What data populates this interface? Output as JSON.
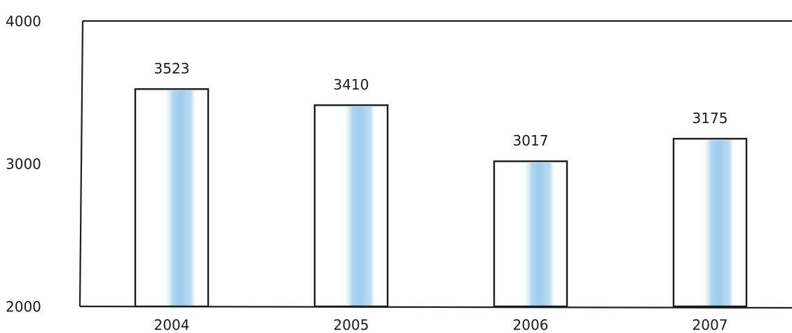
{
  "chart_data": {
    "type": "bar",
    "categories": [
      "2004",
      "2005",
      "2006",
      "2007"
    ],
    "values": [
      3523,
      3410,
      3017,
      3175
    ],
    "data_labels": [
      "3523",
      "3410",
      "3017",
      "3175"
    ],
    "title": "",
    "xlabel": "",
    "ylabel": "",
    "ylim": [
      2000,
      4000
    ],
    "yticks": [
      2000,
      3000,
      4000
    ],
    "ytick_labels": [
      "2000",
      "3000",
      "4000"
    ],
    "grid": false,
    "legend": "none",
    "colors": {
      "bar_fill": "#ffffff",
      "bar_shade": "#9fcdee",
      "bar_outline": "#1a1a1a",
      "axis": "#1f1f1f"
    }
  }
}
